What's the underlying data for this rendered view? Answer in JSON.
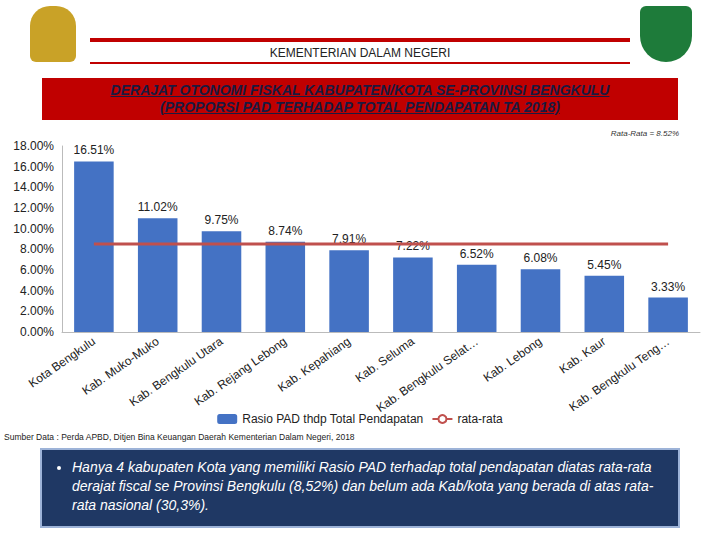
{
  "header": {
    "ministry": "KEMENTERIAN DALAM NEGERI"
  },
  "title": "DERAJAT OTONOMI FISKAL KABUPATEN/KOTA SE-PROVINSI BENGKULU",
  "subtitle": "(PROPORSI PAD TERHADAP TOTAL PENDAPATAN TA 2018)",
  "chart_data": {
    "type": "bar",
    "annotation": "Rata-Rata = 8.52%",
    "categories": [
      "Kota Bengkulu",
      "Kab. Muko-Muko",
      "Kab. Bengkulu Utara",
      "Kab. Rejang Lebong",
      "Kab. Kepahiang",
      "Kab. Seluma",
      "Kab. Bengkulu Selat…",
      "Kab. Lebong",
      "Kab. Kaur",
      "Kab. Bengkulu Teng…"
    ],
    "series": [
      {
        "name": "Rasio PAD thdp Total Pendapatan",
        "type": "bar",
        "color": "#4472c4",
        "values": [
          16.51,
          11.02,
          9.75,
          8.74,
          7.91,
          7.22,
          6.52,
          6.08,
          5.45,
          3.33
        ],
        "value_labels": [
          "16.51%",
          "11.02%",
          "9.75%",
          "8.74%",
          "7.91%",
          "7.22%",
          "6.52%",
          "6.08%",
          "5.45%",
          "3.33%"
        ]
      },
      {
        "name": "rata-rata",
        "type": "line",
        "color": "#c0504d",
        "values": [
          8.52,
          8.52,
          8.52,
          8.52,
          8.52,
          8.52,
          8.52,
          8.52,
          8.52,
          8.52
        ]
      }
    ],
    "ylim": [
      0,
      18
    ],
    "yticks": [
      {
        "value": 0,
        "label": "0.00%"
      },
      {
        "value": 2,
        "label": "2.00%"
      },
      {
        "value": 4,
        "label": "4.00%"
      },
      {
        "value": 6,
        "label": "6.00%"
      },
      {
        "value": 8,
        "label": "8.00%"
      },
      {
        "value": 10,
        "label": "10.00%"
      },
      {
        "value": 12,
        "label": "12.00%"
      },
      {
        "value": 14,
        "label": "14.00%"
      },
      {
        "value": 16,
        "label": "16.00%"
      },
      {
        "value": 18,
        "label": "18.00%"
      }
    ],
    "grid": false,
    "data_labels": true,
    "legend": "bottom"
  },
  "source": "Sumber Data : Perda APBD, Ditjen Bina Keuangan Daerah Kementerian Dalam Negeri, 2018",
  "note": "Hanya 4 kabupaten Kota yang memiliki Rasio PAD terhadap total pendapatan diatas rata-rata derajat fiscal se Provinsi Bengkulu (8,52%) dan belum ada Kab/kota yang berada di atas rata-rata nasional (30,3%)."
}
